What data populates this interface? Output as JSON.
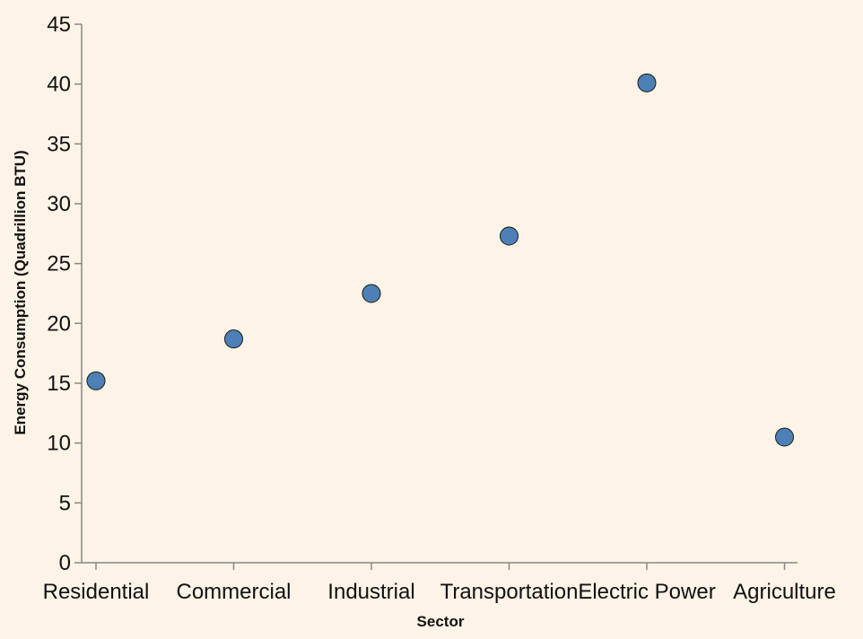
{
  "chart_data": {
    "type": "scatter",
    "xlabel": "Sector",
    "ylabel": "Energy Consumption (Quadrillion BTU)",
    "categories": [
      "Residential",
      "Commercial",
      "Industrial",
      "Transportation",
      "Electric Power",
      "Agriculture"
    ],
    "values": [
      15.2,
      18.7,
      22.5,
      27.3,
      40.1,
      10.5
    ],
    "ylim": [
      0,
      45
    ],
    "yticks": [
      0,
      5,
      10,
      15,
      20,
      25,
      30,
      35,
      40,
      45
    ],
    "grid": false,
    "legend": "none",
    "colors": {
      "point_fill": "#4c80b6",
      "point_stroke": "#1a1a1a",
      "axis": "#888888",
      "background": "#fdf3e6"
    }
  }
}
